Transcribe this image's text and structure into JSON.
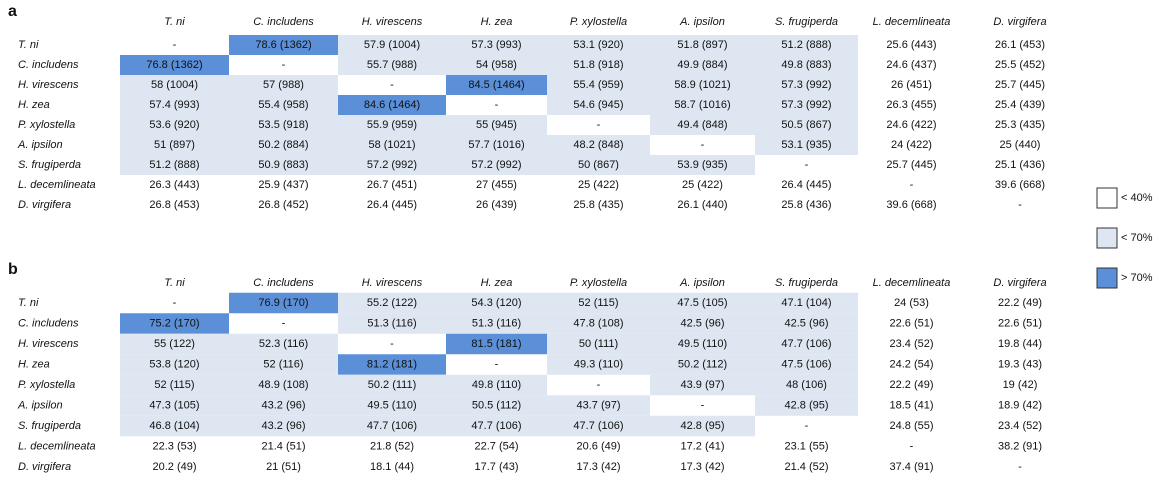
{
  "panels": [
    {
      "label": "a",
      "columns": [
        "T. ni",
        "C. includens",
        "H. virescens",
        "H. zea",
        "P. xylostella",
        "A. ipsilon",
        "S. frugiperda",
        "L. decemlineata",
        "D. virgifera"
      ],
      "rows": [
        {
          "name": "T. ni",
          "cells": [
            "-",
            "78.6 (1362)",
            "57.9 (1004)",
            "57.3 (993)",
            "53.1 (920)",
            "51.8 (897)",
            "51.2 (888)",
            "25.6 (443)",
            "26.1 (453)"
          ]
        },
        {
          "name": "C. includens",
          "cells": [
            "76.8 (1362)",
            "-",
            "55.7 (988)",
            "54 (958)",
            "51.8 (918)",
            "49.9 (884)",
            "49.8 (883)",
            "24.6 (437)",
            "25.5 (452)"
          ]
        },
        {
          "name": "H. virescens",
          "cells": [
            "58 (1004)",
            "57 (988)",
            "-",
            "84.5 (1464)",
            "55.4 (959)",
            "58.9 (1021)",
            "57.3 (992)",
            "26 (451)",
            "25.7 (445)"
          ]
        },
        {
          "name": "H. zea",
          "cells": [
            "57.4 (993)",
            "55.4 (958)",
            "84.6 (1464)",
            "-",
            "54.6 (945)",
            "58.7 (1016)",
            "57.3 (992)",
            "26.3 (455)",
            "25.4 (439)"
          ]
        },
        {
          "name": "P. xylostella",
          "cells": [
            "53.6 (920)",
            "53.5 (918)",
            "55.9 (959)",
            "55 (945)",
            "-",
            "49.4 (848)",
            "50.5 (867)",
            "24.6 (422)",
            "25.3 (435)"
          ]
        },
        {
          "name": "A. ipsilon",
          "cells": [
            "51 (897)",
            "50.2 (884)",
            "58 (1021)",
            "57.7 (1016)",
            "48.2 (848)",
            "-",
            "53.1 (935)",
            "24 (422)",
            "25 (440)"
          ]
        },
        {
          "name": "S. frugiperda",
          "cells": [
            "51.2 (888)",
            "50.9 (883)",
            "57.2 (992)",
            "57.2 (992)",
            "50 (867)",
            "53.9 (935)",
            "-",
            "25.7 (445)",
            "25.1 (436)"
          ]
        },
        {
          "name": "L. decemlineata",
          "cells": [
            "26.3 (443)",
            "25.9 (437)",
            "26.7 (451)",
            "27 (455)",
            "25 (422)",
            "25 (422)",
            "26.4 (445)",
            "-",
            "39.6 (668)"
          ]
        },
        {
          "name": "D. virgifera",
          "cells": [
            "26.8 (453)",
            "26.8 (452)",
            "26.4 (445)",
            "26 (439)",
            "25.8 (435)",
            "26.1 (440)",
            "25.8 (436)",
            "39.6 (668)",
            "-"
          ]
        }
      ]
    },
    {
      "label": "b",
      "columns": [
        "T. ni",
        "C. includens",
        "H. virescens",
        "H. zea",
        "P. xylostella",
        "A. ipsilon",
        "S. frugiperda",
        "L. decemlineata",
        "D. virgifera"
      ],
      "rows": [
        {
          "name": "T. ni",
          "cells": [
            "-",
            "76.9 (170)",
            "55.2 (122)",
            "54.3 (120)",
            "52 (115)",
            "47.5 (105)",
            "47.1 (104)",
            "24 (53)",
            "22.2 (49)"
          ]
        },
        {
          "name": "C. includens",
          "cells": [
            "75.2 (170)",
            "-",
            "51.3 (116)",
            "51.3 (116)",
            "47.8 (108)",
            "42.5 (96)",
            "42.5 (96)",
            "22.6 (51)",
            "22.6 (51)"
          ]
        },
        {
          "name": "H. virescens",
          "cells": [
            "55 (122)",
            "52.3 (116)",
            "-",
            "81.5 (181)",
            "50 (111)",
            "49.5 (110)",
            "47.7 (106)",
            "23.4 (52)",
            "19.8 (44)"
          ]
        },
        {
          "name": "H. zea",
          "cells": [
            "53.8 (120)",
            "52 (116)",
            "81.2 (181)",
            "-",
            "49.3 (110)",
            "50.2 (112)",
            "47.5 (106)",
            "24.2 (54)",
            "19.3 (43)"
          ]
        },
        {
          "name": "P. xylostella",
          "cells": [
            "52 (115)",
            "48.9 (108)",
            "50.2 (111)",
            "49.8 (110)",
            "-",
            "43.9 (97)",
            "48 (106)",
            "22.2 (49)",
            "19 (42)"
          ]
        },
        {
          "name": "A. ipsilon",
          "cells": [
            "47.3 (105)",
            "43.2 (96)",
            "49.5 (110)",
            "50.5 (112)",
            "43.7 (97)",
            "-",
            "42.8 (95)",
            "18.5 (41)",
            "18.9 (42)"
          ]
        },
        {
          "name": "S. frugiperda",
          "cells": [
            "46.8 (104)",
            "43.2 (96)",
            "47.7 (106)",
            "47.7 (106)",
            "47.7 (106)",
            "42.8 (95)",
            "-",
            "24.8 (55)",
            "23.4 (52)"
          ]
        },
        {
          "name": "L. decemlineata",
          "cells": [
            "22.3 (53)",
            "21.4 (51)",
            "21.8 (52)",
            "22.7 (54)",
            "20.6 (49)",
            "17.2 (41)",
            "23.1 (55)",
            "-",
            "38.2 (91)"
          ]
        },
        {
          "name": "D. virgifera",
          "cells": [
            "20.2 (49)",
            "21 (51)",
            "18.1 (44)",
            "17.7 (43)",
            "17.3 (42)",
            "17.3 (42)",
            "21.4 (52)",
            "37.4 (91)",
            "-"
          ]
        }
      ]
    }
  ],
  "legend": [
    {
      "label": "< 40%",
      "color": "#ffffff"
    },
    {
      "label": "< 70%",
      "color": "#dde6f1"
    },
    {
      "label": "> 70%",
      "color": "#5b8fd8"
    }
  ]
}
